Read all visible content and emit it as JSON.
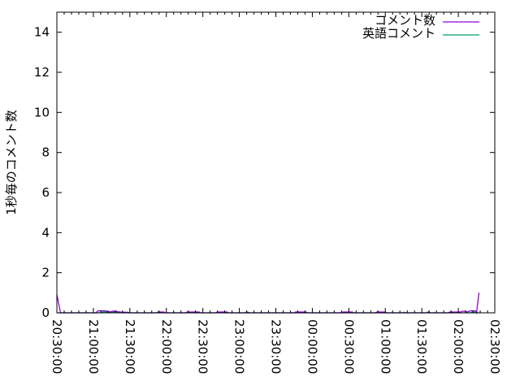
{
  "chart_data": {
    "type": "line",
    "title": "",
    "xlabel": "",
    "ylabel": "1秒毎のコメント数",
    "ylim": [
      0,
      15
    ],
    "yticks": [
      0,
      2,
      4,
      6,
      8,
      10,
      12,
      14
    ],
    "xlim": [
      "20:30:00",
      "02:30:00"
    ],
    "xticks": [
      "20:30:00",
      "21:00:00",
      "21:30:00",
      "22:00:00",
      "22:30:00",
      "23:00:00",
      "23:30:00",
      "00:00:00",
      "00:30:00",
      "01:00:00",
      "01:30:00",
      "02:00:00",
      "02:30:00"
    ],
    "grid": false,
    "legend": "top-right",
    "series": [
      {
        "name": "コメント数",
        "color": "#9400d3",
        "points": [
          [
            "20:30",
            0.9
          ],
          [
            "20:33",
            0
          ],
          [
            "21:02",
            0
          ],
          [
            "21:04",
            0.1
          ],
          [
            "21:10",
            0.1
          ],
          [
            "21:12",
            0.05
          ],
          [
            "21:14",
            0.05
          ],
          [
            "21:16",
            0.08
          ],
          [
            "21:19",
            0.08
          ],
          [
            "21:21",
            0.03
          ],
          [
            "21:28",
            0.03
          ],
          [
            "21:30",
            0
          ],
          [
            "21:52",
            0
          ],
          [
            "21:53",
            0.04
          ],
          [
            "21:58",
            0.04
          ],
          [
            "21:59",
            0
          ],
          [
            "22:16",
            0
          ],
          [
            "22:17",
            0.04
          ],
          [
            "22:27",
            0.04
          ],
          [
            "22:28",
            0
          ],
          [
            "22:41",
            0
          ],
          [
            "22:42",
            0.04
          ],
          [
            "22:50",
            0.04
          ],
          [
            "22:51",
            0
          ],
          [
            "23:05",
            0
          ],
          [
            "23:06",
            0.04
          ],
          [
            "23:09",
            0
          ],
          [
            "23:45",
            0
          ],
          [
            "23:46",
            0.04
          ],
          [
            "23:55",
            0.04
          ],
          [
            "23:56",
            0
          ],
          [
            "00:24",
            0
          ],
          [
            "00:25",
            0.04
          ],
          [
            "00:33",
            0.04
          ],
          [
            "00:34",
            0
          ],
          [
            "00:52",
            0
          ],
          [
            "00:53",
            0.04
          ],
          [
            "01:00",
            0.04
          ],
          [
            "01:01",
            0
          ],
          [
            "01:34",
            0
          ],
          [
            "01:35",
            0.04
          ],
          [
            "01:37",
            0
          ],
          [
            "01:52",
            0
          ],
          [
            "01:53",
            0.04
          ],
          [
            "02:02",
            0.04
          ],
          [
            "02:03",
            0.08
          ],
          [
            "02:06",
            0.08
          ],
          [
            "02:07",
            0.04
          ],
          [
            "02:10",
            0.1
          ],
          [
            "02:14",
            0.1
          ],
          [
            "02:15",
            0
          ],
          [
            "02:17",
            1.0
          ]
        ]
      },
      {
        "name": "英語コメント",
        "color": "#009e73",
        "points": [
          [
            "20:30",
            0
          ],
          [
            "21:06",
            0
          ],
          [
            "21:07",
            0.05
          ],
          [
            "21:22",
            0.05
          ],
          [
            "21:23",
            0
          ],
          [
            "01:14",
            0
          ],
          [
            "01:15",
            0.03
          ],
          [
            "01:17",
            0
          ],
          [
            "02:10",
            0
          ],
          [
            "02:11",
            0.04
          ],
          [
            "02:15",
            0.04
          ],
          [
            "02:16",
            0
          ],
          [
            "02:17",
            0
          ]
        ]
      }
    ]
  }
}
